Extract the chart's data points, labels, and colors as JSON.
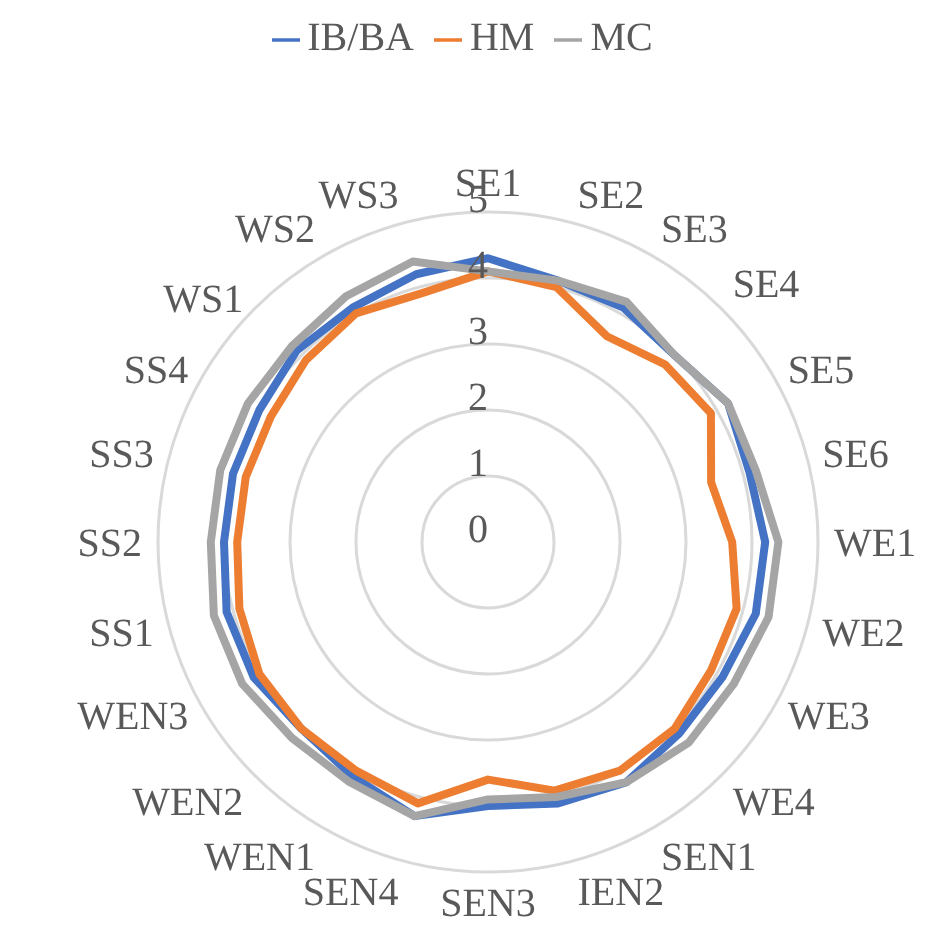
{
  "chart_data": {
    "type": "radar",
    "categories": [
      "SE1",
      "SE2",
      "SE3",
      "SE4",
      "SE5",
      "SE6",
      "WE1",
      "WE2",
      "WE3",
      "WE4",
      "SEN1",
      "IEN2",
      "SEN3",
      "SEN4",
      "WEN1",
      "WEN2",
      "WEN3",
      "SS1",
      "SS2",
      "SS3",
      "SS4",
      "WS1",
      "WS2",
      "WS3"
    ],
    "series": [
      {
        "name": "IB/BA",
        "color": "#4472c4",
        "values": [
          4.3,
          4.1,
          4.1,
          4.0,
          4.2,
          4.1,
          4.2,
          4.2,
          4.1,
          4.1,
          4.2,
          4.1,
          4.0,
          4.3,
          4.1,
          4.0,
          4.1,
          4.1,
          4.0,
          4.0,
          4.0,
          4.1,
          4.1,
          4.2
        ]
      },
      {
        "name": "HM",
        "color": "#ed7d31",
        "values": [
          4.1,
          4.0,
          3.6,
          3.8,
          3.9,
          3.5,
          3.7,
          3.9,
          3.9,
          4.0,
          4.0,
          3.9,
          3.6,
          4.1,
          4.0,
          4.0,
          4.0,
          3.9,
          3.8,
          3.8,
          3.8,
          3.9,
          4.0,
          3.9
        ]
      },
      {
        "name": "MC",
        "color": "#a5a5a5",
        "values": [
          4.1,
          4.1,
          4.2,
          4.0,
          4.2,
          4.2,
          4.4,
          4.4,
          4.3,
          4.3,
          4.2,
          4.0,
          3.9,
          4.3,
          4.2,
          4.2,
          4.3,
          4.3,
          4.2,
          4.2,
          4.2,
          4.2,
          4.3,
          4.4
        ]
      }
    ],
    "ylim": [
      0,
      5
    ],
    "yticks": [
      0,
      1,
      2,
      3,
      4,
      5
    ],
    "grid": true,
    "legend": "top"
  }
}
